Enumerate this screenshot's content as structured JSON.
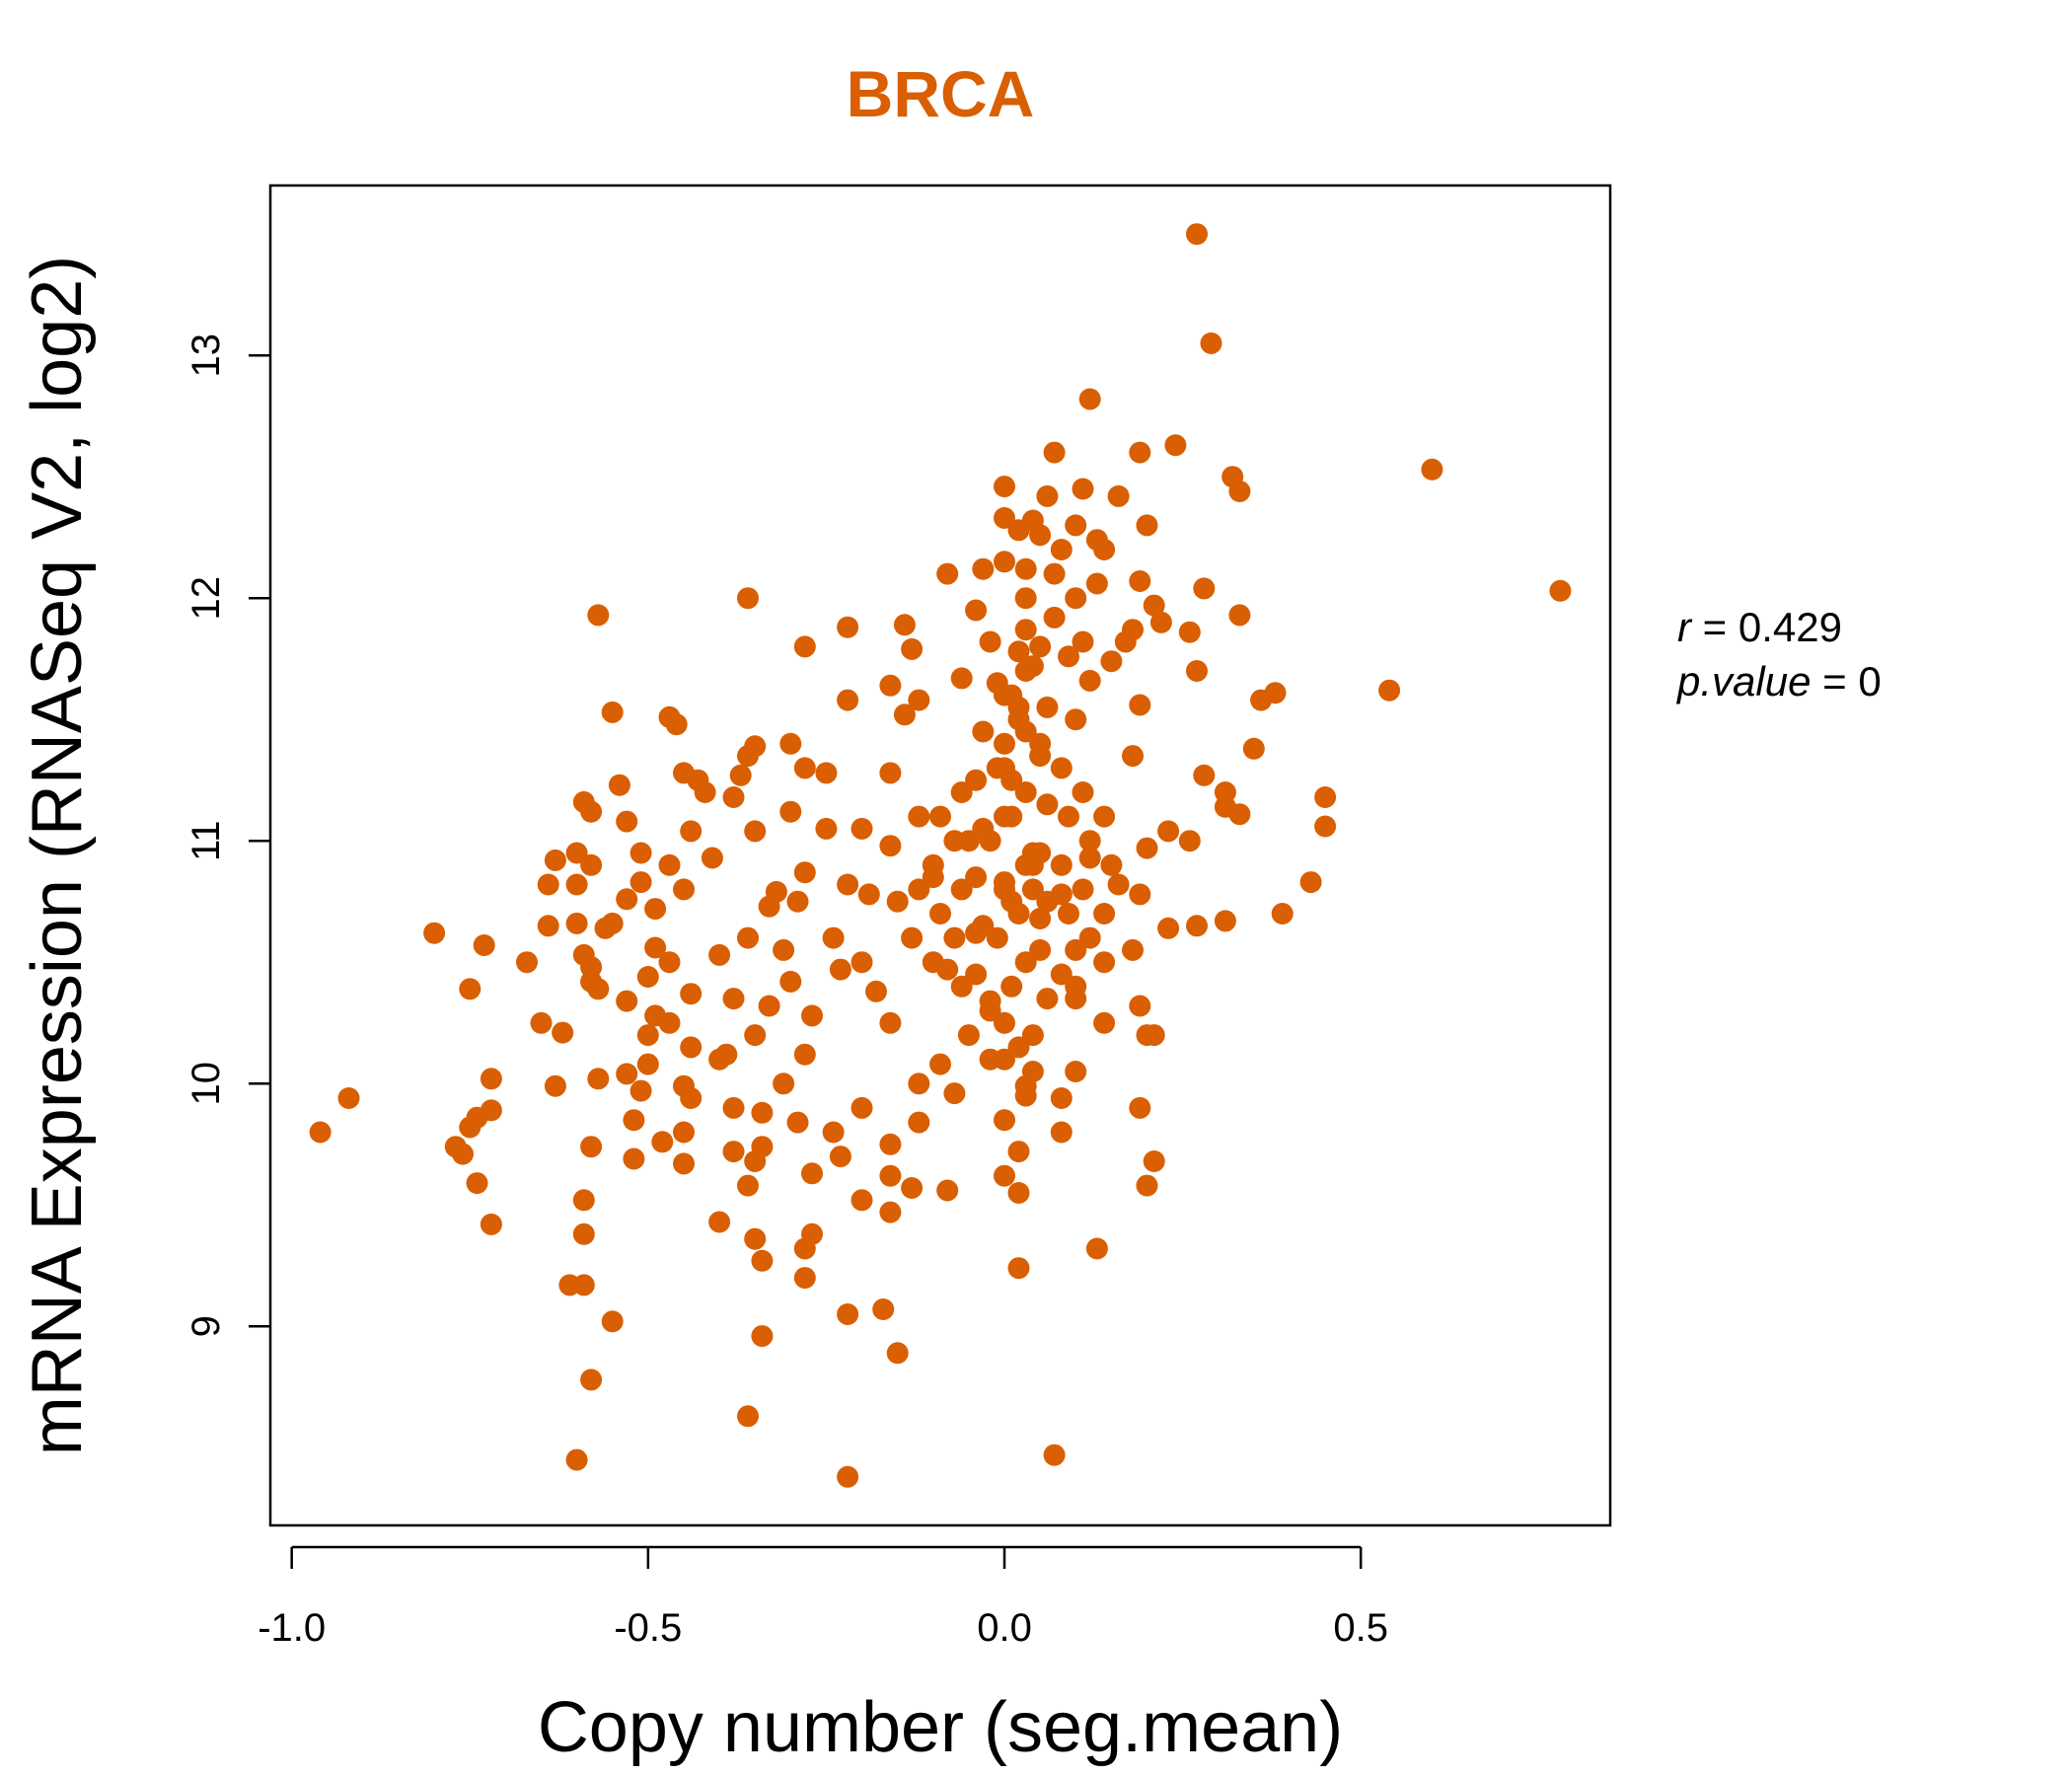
{
  "chart_data": {
    "type": "scatter",
    "title": "BRCA",
    "xlabel": "Copy number (seg.mean)",
    "ylabel": "mRNA Expression (RNASeq V2, log2)",
    "xlim": [
      -1.03,
      0.85
    ],
    "ylim": [
      8.18,
      13.7
    ],
    "x_ticks": [
      -1.0,
      -0.5,
      0.0,
      0.5
    ],
    "x_tick_labels": [
      "-1.0",
      "-0.5",
      "0.0",
      "0.5"
    ],
    "y_ticks": [
      9,
      10,
      11,
      12,
      13
    ],
    "y_tick_labels": [
      "9",
      "10",
      "11",
      "12",
      "13"
    ],
    "grid": false,
    "legend": "none",
    "colors": {
      "points": "#D95F02",
      "title": "#D95F02",
      "axis": "#000000"
    },
    "stats": {
      "r_symbol": "r",
      "r_value": "0.429",
      "p_symbol": "p.value",
      "p_value": "0"
    },
    "points": [
      [
        0.27,
        13.5
      ],
      [
        0.29,
        13.05
      ],
      [
        0.12,
        12.82
      ],
      [
        0.24,
        12.63
      ],
      [
        0.07,
        12.6
      ],
      [
        0.19,
        12.6
      ],
      [
        0.6,
        12.53
      ],
      [
        0.32,
        12.5
      ],
      [
        0.33,
        12.44
      ],
      [
        0.0,
        12.46
      ],
      [
        0.11,
        12.45
      ],
      [
        0.06,
        12.42
      ],
      [
        0.16,
        12.42
      ],
      [
        0.04,
        12.32
      ],
      [
        0.0,
        12.33
      ],
      [
        0.1,
        12.3
      ],
      [
        0.2,
        12.3
      ],
      [
        0.02,
        12.28
      ],
      [
        0.05,
        12.26
      ],
      [
        0.13,
        12.24
      ],
      [
        0.08,
        12.2
      ],
      [
        0.14,
        12.2
      ],
      [
        -0.03,
        12.12
      ],
      [
        0.0,
        12.15
      ],
      [
        0.03,
        12.12
      ],
      [
        0.07,
        12.1
      ],
      [
        0.19,
        12.07
      ],
      [
        0.13,
        12.06
      ],
      [
        -0.08,
        12.1
      ],
      [
        0.78,
        12.03
      ],
      [
        0.28,
        12.04
      ],
      [
        -0.36,
        12.0
      ],
      [
        0.03,
        12.0
      ],
      [
        0.1,
        12.0
      ],
      [
        -0.57,
        11.93
      ],
      [
        0.21,
        11.97
      ],
      [
        -0.04,
        11.95
      ],
      [
        0.07,
        11.92
      ],
      [
        0.22,
        11.9
      ],
      [
        0.33,
        11.93
      ],
      [
        -0.22,
        11.88
      ],
      [
        -0.14,
        11.89
      ],
      [
        0.03,
        11.87
      ],
      [
        0.18,
        11.87
      ],
      [
        0.26,
        11.86
      ],
      [
        -0.02,
        11.82
      ],
      [
        0.11,
        11.82
      ],
      [
        0.17,
        11.82
      ],
      [
        -0.28,
        11.8
      ],
      [
        -0.13,
        11.79
      ],
      [
        0.02,
        11.78
      ],
      [
        0.09,
        11.76
      ],
      [
        0.15,
        11.74
      ],
      [
        0.04,
        11.72
      ],
      [
        0.27,
        11.7
      ],
      [
        -0.06,
        11.67
      ],
      [
        0.12,
        11.66
      ],
      [
        0.54,
        11.62
      ],
      [
        0.38,
        11.61
      ],
      [
        0.36,
        11.58
      ],
      [
        -0.16,
        11.64
      ],
      [
        0.0,
        11.6
      ],
      [
        -0.22,
        11.58
      ],
      [
        0.19,
        11.56
      ],
      [
        -0.55,
        11.53
      ],
      [
        0.06,
        11.55
      ],
      [
        -0.12,
        11.58
      ],
      [
        -0.47,
        11.51
      ],
      [
        -0.46,
        11.48
      ],
      [
        0.1,
        11.5
      ],
      [
        -0.14,
        11.52
      ],
      [
        0.35,
        11.38
      ],
      [
        -0.3,
        11.4
      ],
      [
        -0.35,
        11.39
      ],
      [
        0.03,
        11.45
      ],
      [
        -0.36,
        11.35
      ],
      [
        0.05,
        11.4
      ],
      [
        0.18,
        11.35
      ],
      [
        -0.45,
        11.28
      ],
      [
        -0.28,
        11.3
      ],
      [
        -0.16,
        11.28
      ],
      [
        -0.25,
        11.28
      ],
      [
        0.28,
        11.27
      ],
      [
        -0.37,
        11.27
      ],
      [
        -0.43,
        11.25
      ],
      [
        -0.54,
        11.23
      ],
      [
        0.31,
        11.2
      ],
      [
        -0.42,
        11.2
      ],
      [
        0.0,
        11.3
      ],
      [
        -0.38,
        11.18
      ],
      [
        0.01,
        11.25
      ],
      [
        -0.59,
        11.16
      ],
      [
        -0.58,
        11.12
      ],
      [
        0.31,
        11.14
      ],
      [
        0.33,
        11.11
      ],
      [
        0.45,
        11.18
      ],
      [
        -0.12,
        11.1
      ],
      [
        -0.2,
        11.05
      ],
      [
        -0.44,
        11.04
      ],
      [
        -0.25,
        11.05
      ],
      [
        0.45,
        11.06
      ],
      [
        0.23,
        11.04
      ],
      [
        -0.53,
        11.08
      ],
      [
        -0.35,
        11.04
      ],
      [
        0.0,
        11.1
      ],
      [
        -0.3,
        11.12
      ],
      [
        -0.6,
        10.95
      ],
      [
        0.26,
        11.0
      ],
      [
        -0.05,
        11.0
      ],
      [
        -0.16,
        10.98
      ],
      [
        0.2,
        10.97
      ],
      [
        -0.63,
        10.92
      ],
      [
        -0.51,
        10.95
      ],
      [
        -0.47,
        10.9
      ],
      [
        -0.41,
        10.93
      ],
      [
        0.04,
        10.95
      ],
      [
        0.12,
        10.93
      ],
      [
        -0.58,
        10.9
      ],
      [
        0.03,
        10.9
      ],
      [
        -0.28,
        10.87
      ],
      [
        -0.1,
        10.85
      ],
      [
        -0.51,
        10.83
      ],
      [
        -0.64,
        10.82
      ],
      [
        -0.6,
        10.82
      ],
      [
        -0.45,
        10.8
      ],
      [
        0.0,
        10.83
      ],
      [
        0.16,
        10.82
      ],
      [
        0.43,
        10.83
      ],
      [
        -0.22,
        10.82
      ],
      [
        -0.32,
        10.79
      ],
      [
        0.04,
        10.8
      ],
      [
        -0.19,
        10.78
      ],
      [
        -0.53,
        10.76
      ],
      [
        0.19,
        10.78
      ],
      [
        0.08,
        10.78
      ],
      [
        -0.15,
        10.75
      ],
      [
        -0.29,
        10.75
      ],
      [
        -0.33,
        10.73
      ],
      [
        0.01,
        10.75
      ],
      [
        0.39,
        10.7
      ],
      [
        -0.49,
        10.72
      ],
      [
        -0.64,
        10.65
      ],
      [
        -0.6,
        10.66
      ],
      [
        -0.55,
        10.66
      ],
      [
        0.31,
        10.67
      ],
      [
        0.27,
        10.65
      ],
      [
        0.23,
        10.64
      ],
      [
        -0.8,
        10.62
      ],
      [
        -0.56,
        10.64
      ],
      [
        0.05,
        10.68
      ],
      [
        -0.36,
        10.6
      ],
      [
        -0.04,
        10.62
      ],
      [
        -0.24,
        10.6
      ],
      [
        -0.73,
        10.57
      ],
      [
        0.18,
        10.55
      ],
      [
        -0.49,
        10.56
      ],
      [
        -0.31,
        10.55
      ],
      [
        0.1,
        10.55
      ],
      [
        -0.59,
        10.53
      ],
      [
        -0.4,
        10.53
      ],
      [
        -0.67,
        10.5
      ],
      [
        -0.2,
        10.5
      ],
      [
        0.14,
        10.5
      ],
      [
        -0.58,
        10.48
      ],
      [
        -0.47,
        10.5
      ],
      [
        -0.23,
        10.47
      ],
      [
        -0.08,
        10.47
      ],
      [
        0.08,
        10.45
      ],
      [
        -0.58,
        10.42
      ],
      [
        -0.5,
        10.44
      ],
      [
        -0.3,
        10.42
      ],
      [
        -0.57,
        10.39
      ],
      [
        -0.75,
        10.39
      ],
      [
        -0.44,
        10.37
      ],
      [
        -0.18,
        10.38
      ],
      [
        -0.38,
        10.35
      ],
      [
        -0.53,
        10.34
      ],
      [
        0.1,
        10.35
      ],
      [
        -0.02,
        10.34
      ],
      [
        0.19,
        10.32
      ],
      [
        -0.33,
        10.32
      ],
      [
        -0.49,
        10.28
      ],
      [
        -0.27,
        10.28
      ],
      [
        -0.65,
        10.25
      ],
      [
        -0.47,
        10.25
      ],
      [
        0.14,
        10.25
      ],
      [
        -0.16,
        10.25
      ],
      [
        -0.62,
        10.21
      ],
      [
        0.2,
        10.2
      ],
      [
        -0.5,
        10.2
      ],
      [
        -0.35,
        10.2
      ],
      [
        0.21,
        10.2
      ],
      [
        -0.05,
        10.2
      ],
      [
        -0.44,
        10.15
      ],
      [
        -0.39,
        10.12
      ],
      [
        -0.28,
        10.12
      ],
      [
        -0.4,
        10.1
      ],
      [
        -0.5,
        10.08
      ],
      [
        -0.09,
        10.08
      ],
      [
        -0.53,
        10.04
      ],
      [
        0.1,
        10.05
      ],
      [
        -0.72,
        10.02
      ],
      [
        -0.57,
        10.02
      ],
      [
        -0.31,
        10.0
      ],
      [
        -0.12,
        10.0
      ],
      [
        -0.63,
        9.99
      ],
      [
        -0.45,
        9.99
      ],
      [
        0.03,
        9.99
      ],
      [
        -0.51,
        9.97
      ],
      [
        -0.07,
        9.96
      ],
      [
        -0.92,
        9.94
      ],
      [
        -0.44,
        9.94
      ],
      [
        0.08,
        9.94
      ],
      [
        -0.38,
        9.9
      ],
      [
        -0.34,
        9.88
      ],
      [
        -0.72,
        9.89
      ],
      [
        -0.2,
        9.9
      ],
      [
        0.19,
        9.9
      ],
      [
        -0.74,
        9.86
      ],
      [
        -0.52,
        9.85
      ],
      [
        0.0,
        9.85
      ],
      [
        -0.29,
        9.84
      ],
      [
        -0.12,
        9.84
      ],
      [
        -0.96,
        9.8
      ],
      [
        -0.45,
        9.8
      ],
      [
        0.08,
        9.8
      ],
      [
        -0.75,
        9.82
      ],
      [
        -0.24,
        9.8
      ],
      [
        -0.77,
        9.74
      ],
      [
        -0.58,
        9.74
      ],
      [
        -0.48,
        9.76
      ],
      [
        -0.38,
        9.72
      ],
      [
        -0.34,
        9.74
      ],
      [
        -0.16,
        9.75
      ],
      [
        0.02,
        9.72
      ],
      [
        -0.76,
        9.71
      ],
      [
        -0.52,
        9.69
      ],
      [
        -0.23,
        9.7
      ],
      [
        0.21,
        9.68
      ],
      [
        -0.35,
        9.68
      ],
      [
        -0.45,
        9.67
      ],
      [
        -0.27,
        9.63
      ],
      [
        -0.16,
        9.62
      ],
      [
        0.0,
        9.62
      ],
      [
        -0.74,
        9.59
      ],
      [
        -0.36,
        9.58
      ],
      [
        -0.13,
        9.57
      ],
      [
        0.2,
        9.58
      ],
      [
        -0.08,
        9.56
      ],
      [
        0.02,
        9.55
      ],
      [
        -0.59,
        9.52
      ],
      [
        -0.2,
        9.52
      ],
      [
        -0.16,
        9.47
      ],
      [
        -0.4,
        9.43
      ],
      [
        -0.72,
        9.42
      ],
      [
        -0.59,
        9.38
      ],
      [
        -0.27,
        9.38
      ],
      [
        -0.35,
        9.36
      ],
      [
        -0.28,
        9.32
      ],
      [
        0.13,
        9.32
      ],
      [
        -0.34,
        9.27
      ],
      [
        0.02,
        9.24
      ],
      [
        -0.28,
        9.2
      ],
      [
        -0.61,
        9.17
      ],
      [
        -0.59,
        9.17
      ],
      [
        -0.17,
        9.07
      ],
      [
        -0.22,
        9.05
      ],
      [
        -0.55,
        9.02
      ],
      [
        -0.34,
        8.96
      ],
      [
        -0.15,
        8.89
      ],
      [
        -0.58,
        8.78
      ],
      [
        -0.36,
        8.63
      ],
      [
        -0.6,
        8.45
      ],
      [
        0.07,
        8.47
      ],
      [
        -0.22,
        8.38
      ],
      [
        0.0,
        11.4
      ],
      [
        0.02,
        11.5
      ],
      [
        -0.01,
        11.3
      ],
      [
        0.03,
        11.2
      ],
      [
        0.01,
        11.1
      ],
      [
        -0.02,
        11.0
      ],
      [
        0.04,
        10.9
      ],
      [
        0.0,
        10.8
      ],
      [
        0.02,
        10.7
      ],
      [
        -0.01,
        10.6
      ],
      [
        0.03,
        10.5
      ],
      [
        0.01,
        10.4
      ],
      [
        -0.02,
        10.3
      ],
      [
        0.04,
        10.2
      ],
      [
        0.0,
        10.1
      ],
      [
        0.05,
        11.35
      ],
      [
        0.06,
        11.15
      ],
      [
        0.05,
        10.95
      ],
      [
        0.06,
        10.75
      ],
      [
        0.05,
        10.55
      ],
      [
        0.06,
        10.35
      ],
      [
        -0.03,
        11.45
      ],
      [
        -0.04,
        11.25
      ],
      [
        -0.03,
        11.05
      ],
      [
        -0.04,
        10.85
      ],
      [
        -0.03,
        10.65
      ],
      [
        -0.04,
        10.45
      ],
      [
        0.08,
        11.3
      ],
      [
        0.09,
        11.1
      ],
      [
        0.08,
        10.9
      ],
      [
        0.09,
        10.7
      ],
      [
        -0.06,
        11.2
      ],
      [
        -0.07,
        11.0
      ],
      [
        -0.06,
        10.8
      ],
      [
        -0.07,
        10.6
      ],
      [
        -0.06,
        10.4
      ],
      [
        0.11,
        11.2
      ],
      [
        0.12,
        11.0
      ],
      [
        0.11,
        10.8
      ],
      [
        0.12,
        10.6
      ],
      [
        0.1,
        10.4
      ],
      [
        -0.09,
        11.1
      ],
      [
        -0.1,
        10.9
      ],
      [
        -0.09,
        10.7
      ],
      [
        -0.1,
        10.5
      ],
      [
        0.14,
        11.1
      ],
      [
        0.15,
        10.9
      ],
      [
        0.14,
        10.7
      ],
      [
        -0.12,
        10.8
      ],
      [
        -0.13,
        10.6
      ],
      [
        0.01,
        11.6
      ],
      [
        0.03,
        11.7
      ],
      [
        0.05,
        11.8
      ],
      [
        -0.01,
        11.65
      ],
      [
        0.02,
        11.55
      ],
      [
        0.0,
        10.25
      ],
      [
        0.02,
        10.15
      ],
      [
        0.04,
        10.05
      ],
      [
        -0.02,
        10.1
      ],
      [
        0.03,
        9.95
      ]
    ]
  }
}
